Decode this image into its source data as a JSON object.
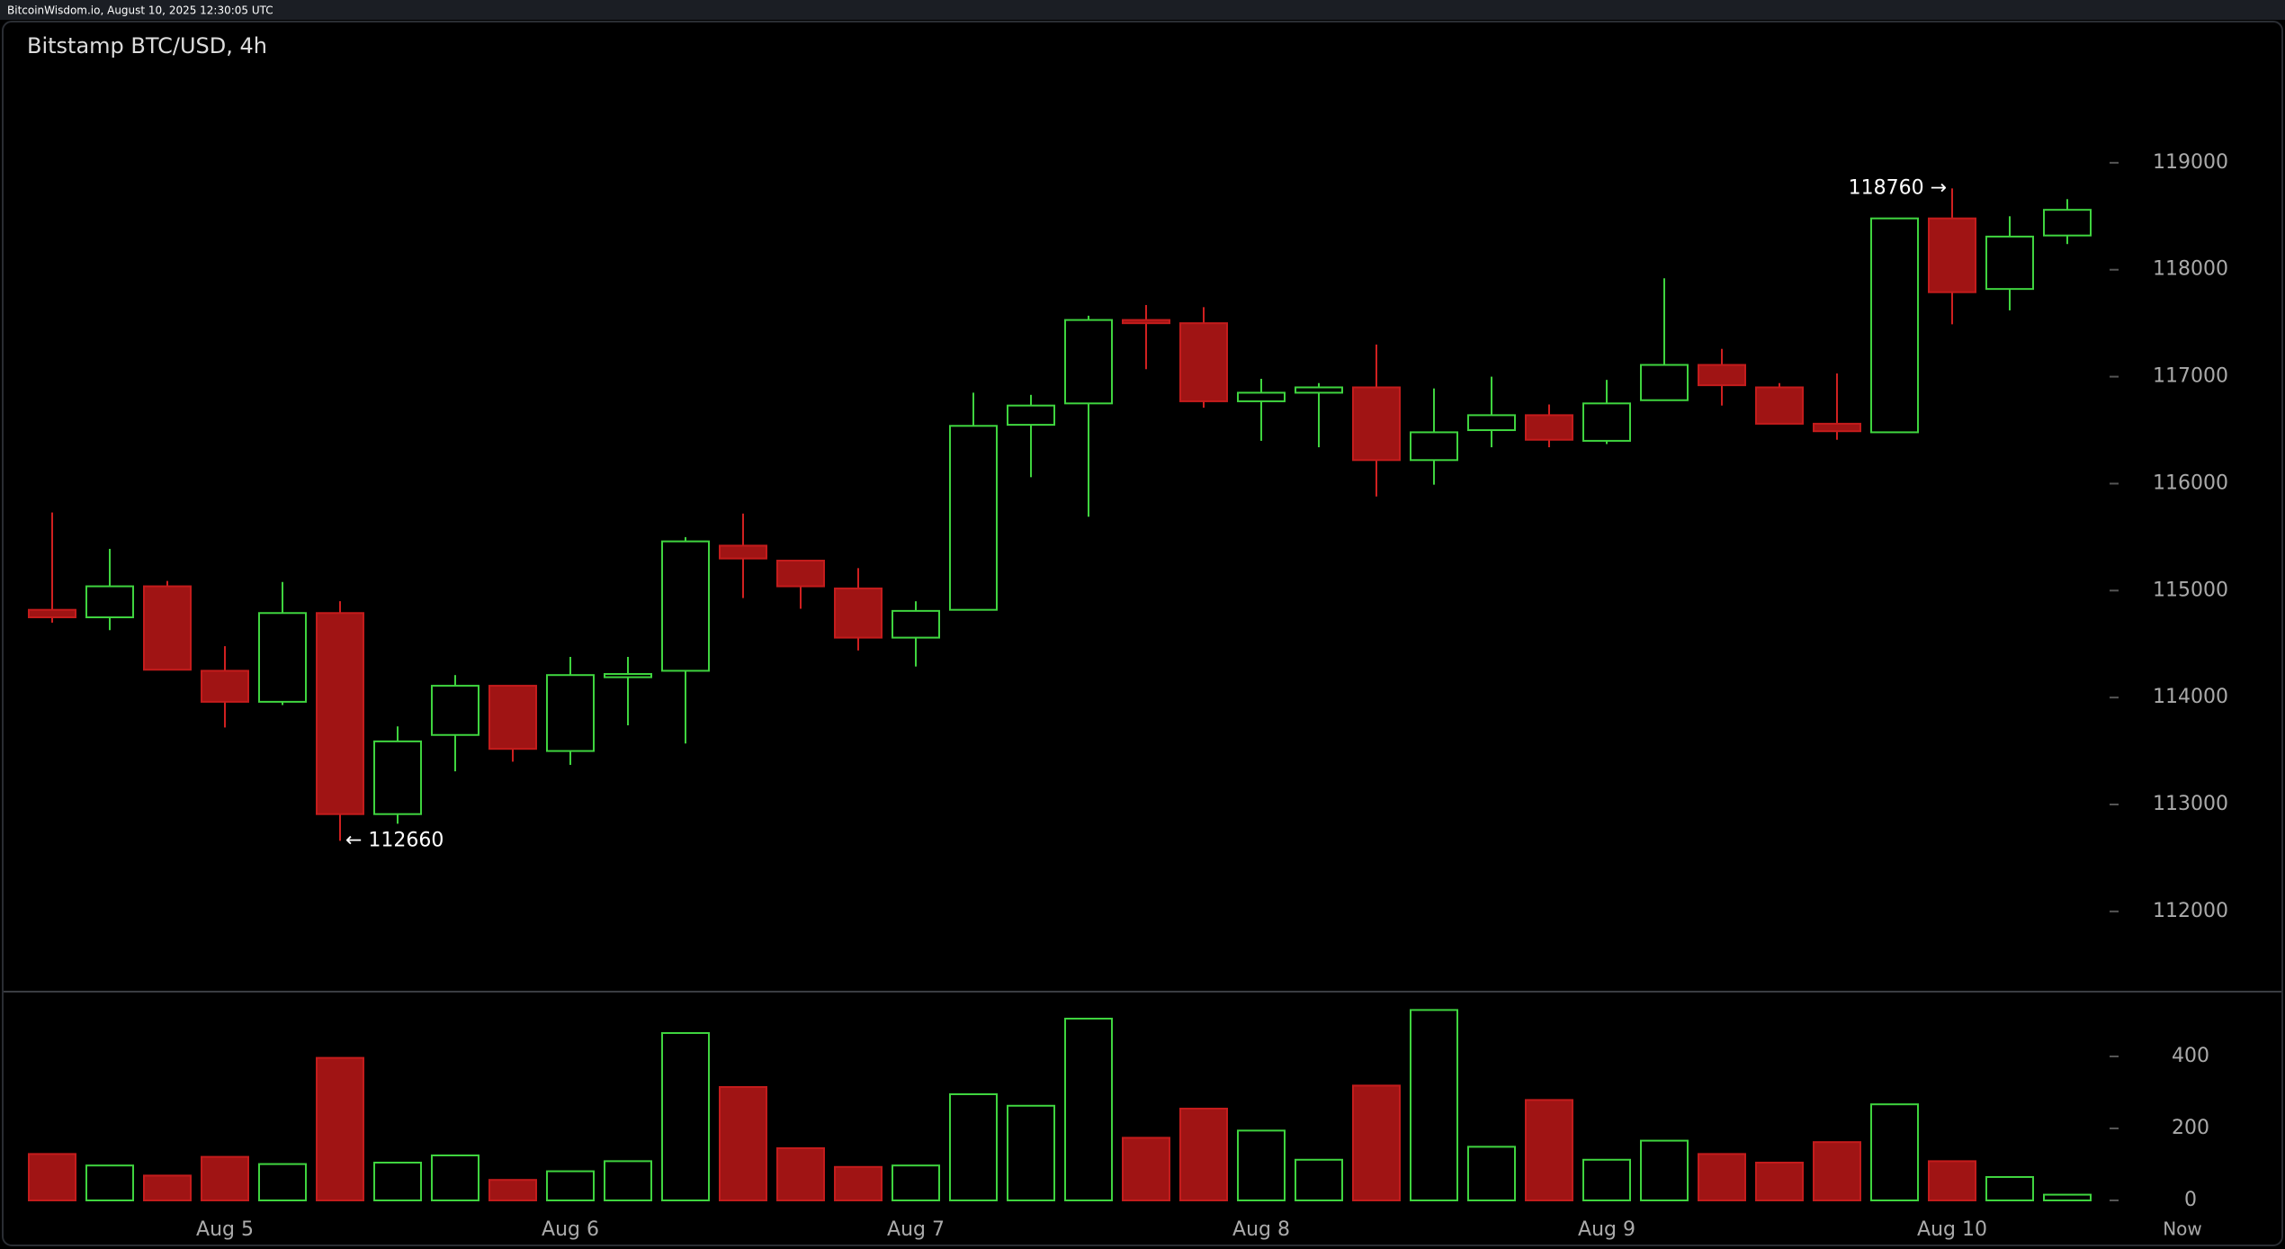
{
  "header": "BitcoinWisdom.io, August 10, 2025 12:30:05 UTC",
  "chart_data": [
    {
      "type": "candlestick",
      "title": "Bitstamp BTC/USD, 4h",
      "categories": [
        null,
        null,
        null,
        "Aug 5",
        null,
        null,
        null,
        null,
        null,
        "Aug 6",
        null,
        null,
        null,
        null,
        null,
        "Aug 7",
        null,
        null,
        null,
        null,
        null,
        "Aug 8",
        null,
        null,
        null,
        null,
        null,
        "Aug 9",
        null,
        null,
        null,
        null,
        null,
        "Aug 10",
        null,
        null
      ],
      "now_label": "Now",
      "open": [
        114820,
        114750,
        115040,
        114250,
        113960,
        114790,
        112910,
        113650,
        114110,
        113500,
        114190,
        114250,
        115420,
        115280,
        115020,
        114560,
        114820,
        116550,
        116750,
        117530,
        117500,
        116770,
        116850,
        116900,
        116220,
        116500,
        116640,
        116400,
        116780,
        117110,
        116900,
        116560,
        116480,
        118480,
        117820,
        118320
      ],
      "high": [
        115730,
        115390,
        115090,
        114480,
        115080,
        114900,
        113730,
        114210,
        114110,
        114380,
        114380,
        115500,
        115720,
        115280,
        115210,
        114900,
        116850,
        116830,
        117570,
        117670,
        117650,
        116980,
        116940,
        117300,
        116890,
        117000,
        116740,
        116970,
        117920,
        117260,
        116940,
        117030,
        118480,
        118760,
        118500,
        118660
      ],
      "low": [
        114700,
        114630,
        114260,
        113720,
        113930,
        112660,
        112820,
        113310,
        113400,
        113370,
        113740,
        113570,
        114930,
        114830,
        114440,
        114290,
        114820,
        116060,
        115690,
        117070,
        116710,
        116400,
        116340,
        115880,
        115990,
        116340,
        116340,
        116370,
        116780,
        116730,
        116560,
        116410,
        116480,
        117490,
        117620,
        118240
      ],
      "close": [
        114750,
        115040,
        114260,
        113960,
        114790,
        112910,
        113590,
        114110,
        113520,
        114210,
        114220,
        115460,
        115300,
        115040,
        114560,
        114810,
        116540,
        116730,
        117530,
        117500,
        116770,
        116850,
        116900,
        116220,
        116480,
        116640,
        116410,
        116750,
        117110,
        116920,
        116560,
        116490,
        118480,
        117790,
        118310,
        118560
      ],
      "up_color": "#3fd43f",
      "down_color": "#a01414",
      "annotations": [
        "← 112660",
        "118760 →"
      ],
      "ylim": [
        111250,
        120320
      ],
      "yticks": [
        112000,
        113000,
        114000,
        115000,
        116000,
        117000,
        118000,
        119000
      ]
    },
    {
      "type": "volume",
      "values": [
        129,
        97,
        69,
        121,
        101,
        396,
        105,
        125,
        57,
        81,
        109,
        465,
        315,
        145,
        93,
        97,
        295,
        263,
        505,
        174,
        255,
        194,
        113,
        319,
        529,
        149,
        279,
        113,
        166,
        129,
        105,
        162,
        267,
        109,
        65,
        16
      ],
      "ylim": [
        -40,
        580
      ],
      "yticks": [
        0,
        200,
        400
      ]
    }
  ]
}
